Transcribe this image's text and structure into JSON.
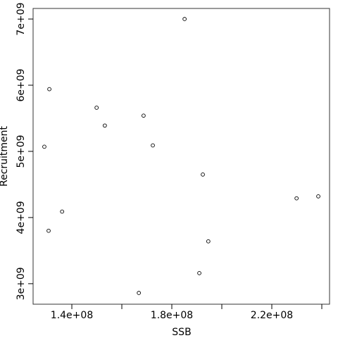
{
  "chart_data": {
    "type": "scatter",
    "x_label": "SSB",
    "y_label": "Recruitment",
    "x": [
      185100000,
      131000000,
      149900000,
      168700000,
      153200000,
      129000000,
      172400000,
      192400000,
      229900000,
      238600000,
      136100000,
      130700000,
      194600000,
      191000000,
      166800000
    ],
    "values": [
      7000000000,
      5940000000,
      5660000000,
      5540000000,
      5390000000,
      5070000000,
      5090000000,
      4650000000,
      4290000000,
      4320000000,
      4090000000,
      3800000000,
      3640000000,
      3160000000,
      2860000000
    ],
    "color": "#000000",
    "xlim": [
      124500000,
      243100000
    ],
    "ylim": [
      2690000000,
      7160000000
    ],
    "xticks": [
      {
        "value": 140000000,
        "label": "1.4e+08"
      },
      {
        "value": 180000000,
        "label": "1.8e+08"
      },
      {
        "value": 220000000,
        "label": "2.2e+08"
      }
    ],
    "xminor_ticks": [
      160000000,
      200000000,
      240000000
    ],
    "yticks": [
      {
        "value": 3000000000,
        "label": "3e+09"
      },
      {
        "value": 4000000000,
        "label": "4e+09"
      },
      {
        "value": 5000000000,
        "label": "5e+09"
      },
      {
        "value": 6000000000,
        "label": "6e+09"
      },
      {
        "value": 7000000000,
        "label": "7e+09"
      }
    ]
  }
}
